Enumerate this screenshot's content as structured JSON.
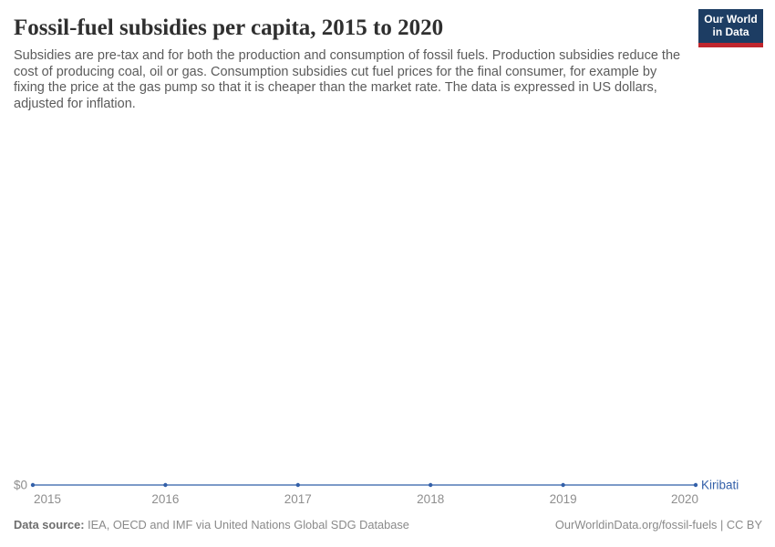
{
  "header": {
    "title": "Fossil-fuel subsidies per capita, 2015 to 2020",
    "subtitle": "Subsidies are pre-tax and for both the production and consumption of fossil fuels. Production subsidies reduce the cost of producing coal, oil or gas. Consumption subsidies cut fuel prices for the final consumer, for example by fixing the price at the gas pump so that it is cheaper than the market rate. The data is expressed in US dollars, adjusted for inflation.",
    "logo": {
      "line1": "Our World",
      "line2": "in Data",
      "bg_color": "#1d3d63",
      "stripe_color": "#c0262d",
      "text_color": "#ffffff"
    }
  },
  "chart_data": {
    "type": "line",
    "title": "Fossil-fuel subsidies per capita, 2015 to 2020",
    "x": [
      2015,
      2016,
      2017,
      2018,
      2019,
      2020
    ],
    "x_tick_labels": [
      "2015",
      "2016",
      "2017",
      "2018",
      "2019",
      "2020"
    ],
    "y_tick_labels": [
      "$0"
    ],
    "ylim": [
      0,
      0
    ],
    "grid": false,
    "legend_position": "end-of-line",
    "tick_color": "#8e8e8e",
    "series": [
      {
        "name": "Kiribati",
        "values": [
          0,
          0,
          0,
          0,
          0,
          0
        ],
        "unit": "US$ per capita",
        "color": "#3360a9"
      }
    ]
  },
  "footer": {
    "datasource_label": "Data source:",
    "datasource_value": "IEA, OECD and IMF via United Nations Global SDG Database",
    "right": "OurWorldinData.org/fossil-fuels | CC BY"
  }
}
